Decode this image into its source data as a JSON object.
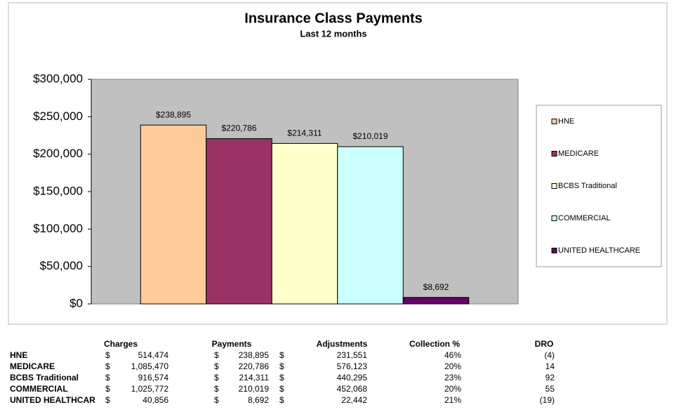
{
  "chart_data": {
    "type": "bar",
    "title": "Insurance Class Payments",
    "subtitle": "Last 12 months",
    "series": [
      {
        "name": "HNE",
        "color": "#ffcc99",
        "values": [
          238895
        ],
        "value_labels": [
          "$238,895"
        ]
      },
      {
        "name": "MEDICARE",
        "color": "#993366",
        "values": [
          220786
        ],
        "value_labels": [
          "$220,786"
        ]
      },
      {
        "name": "BCBS Traditional",
        "color": "#ffffcc",
        "values": [
          214311
        ],
        "value_labels": [
          "$214,311"
        ]
      },
      {
        "name": "COMMERCIAL",
        "color": "#ccffff",
        "values": [
          210019
        ],
        "value_labels": [
          "$210,019"
        ]
      },
      {
        "name": "UNITED HEALTHCARE",
        "color": "#660066",
        "values": [
          8692
        ],
        "value_labels": [
          "$8,692"
        ]
      }
    ],
    "ylim": [
      0,
      300000
    ],
    "yticks": [
      {
        "value": 0,
        "label": "$0"
      },
      {
        "value": 50000,
        "label": "$50,000"
      },
      {
        "value": 100000,
        "label": "$100,000"
      },
      {
        "value": 150000,
        "label": "$150,000"
      },
      {
        "value": 200000,
        "label": "$200,000"
      },
      {
        "value": 250000,
        "label": "$250,000"
      },
      {
        "value": 300000,
        "label": "$300,000"
      }
    ],
    "grid": false,
    "legend": "right",
    "plot_color": "#c0c0c0"
  },
  "table": {
    "columns": [
      "Charges",
      "Payments",
      "Adjustments",
      "Collection %",
      "DRO"
    ],
    "rows": [
      {
        "label": "HNE",
        "cells": [
          "$",
          "514,474",
          "$",
          "238,895",
          "$",
          "231,551",
          "46%",
          "(4)"
        ]
      },
      {
        "label": "MEDICARE",
        "cells": [
          "$",
          "1,085,470",
          "$",
          "220,786",
          "$",
          "576,123",
          "20%",
          "14"
        ]
      },
      {
        "label": "BCBS Traditional",
        "cells": [
          "$",
          "916,574",
          "$",
          "214,311",
          "$",
          "440,295",
          "23%",
          "92"
        ]
      },
      {
        "label": "COMMERCIAL",
        "cells": [
          "$",
          "1,025,772",
          "$",
          "210,019",
          "$",
          "452,068",
          "20%",
          "55"
        ]
      },
      {
        "label": "UNITED HEALTHCAR",
        "cells": [
          "$",
          "40,856",
          "$",
          "8,692",
          "$",
          "22,442",
          "21%",
          "(19)"
        ]
      }
    ]
  }
}
